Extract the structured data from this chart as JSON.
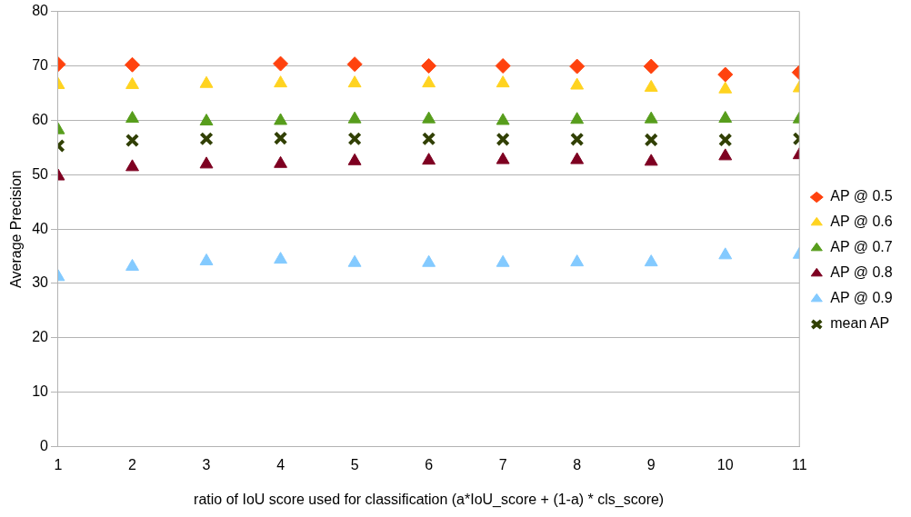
{
  "chart_data": {
    "type": "scatter",
    "xlabel": "ratio of IoU score used for classification (a*IoU_score + (1-a) * cls_score)",
    "ylabel": "Average Precision",
    "x": [
      1,
      2,
      3,
      4,
      5,
      6,
      7,
      8,
      9,
      10,
      11
    ],
    "xlim": [
      1,
      11
    ],
    "xticks": [
      1,
      2,
      3,
      4,
      5,
      6,
      7,
      8,
      9,
      10,
      11
    ],
    "ylim": [
      0,
      80
    ],
    "yticks": [
      0,
      10,
      20,
      30,
      40,
      50,
      60,
      70,
      80
    ],
    "grid": "y",
    "legend": "right",
    "series": [
      {
        "name": "AP @ 0.5",
        "color": "#ff420e",
        "marker": "diamond",
        "values": [
          70.3,
          70.2,
          null,
          70.4,
          70.3,
          70.0,
          70.0,
          69.9,
          69.9,
          68.4,
          68.8
        ]
      },
      {
        "name": "AP @ 0.6",
        "color": "#ffd320",
        "marker": "triangle",
        "values": [
          66.5,
          66.5,
          66.7,
          66.8,
          66.8,
          66.8,
          66.8,
          66.4,
          66.0,
          65.7,
          65.9
        ]
      },
      {
        "name": "AP @ 0.7",
        "color": "#579d1c",
        "marker": "triangle",
        "values": [
          58.2,
          60.3,
          59.8,
          59.9,
          60.2,
          60.2,
          59.9,
          60.1,
          60.2,
          60.3,
          60.2
        ]
      },
      {
        "name": "AP @ 0.8",
        "color": "#7e0021",
        "marker": "triangle",
        "values": [
          49.7,
          51.4,
          51.9,
          52.0,
          52.5,
          52.6,
          52.7,
          52.7,
          52.4,
          53.4,
          53.6
        ]
      },
      {
        "name": "AP @ 0.9",
        "color": "#83caff",
        "marker": "triangle",
        "values": [
          31.2,
          33.1,
          34.1,
          34.4,
          33.8,
          33.8,
          33.8,
          33.9,
          33.9,
          35.2,
          35.3
        ]
      },
      {
        "name": "mean AP",
        "color": "#314004",
        "marker": "cross",
        "values": [
          55.3,
          56.3,
          56.6,
          56.7,
          56.6,
          56.6,
          56.5,
          56.5,
          56.4,
          56.4,
          56.6
        ]
      }
    ]
  }
}
